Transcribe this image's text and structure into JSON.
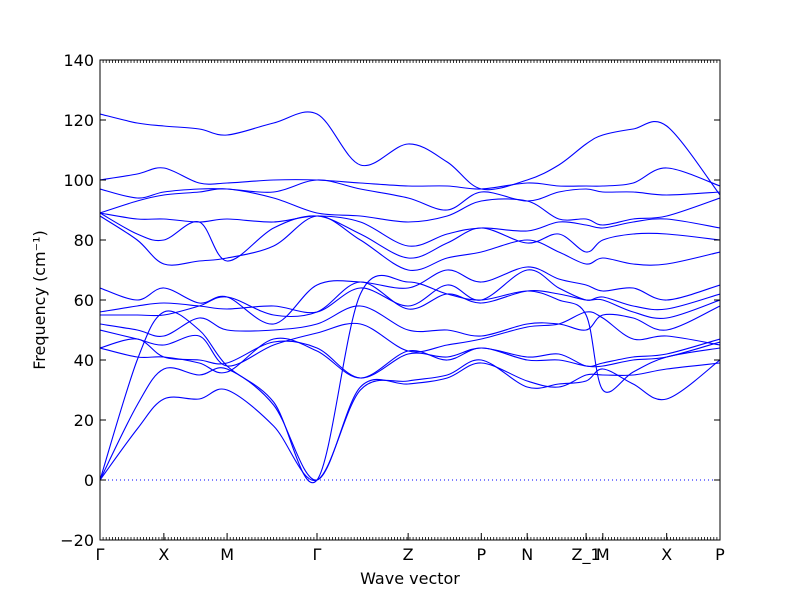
{
  "chart_data": {
    "type": "line",
    "title": "",
    "xlabel": "Wave vector",
    "ylabel": "Frequency (cm⁻¹)",
    "ylim": [
      -20,
      140
    ],
    "xlim": [
      0,
      1
    ],
    "yticks": [
      -20,
      0,
      20,
      40,
      60,
      80,
      100,
      120,
      140
    ],
    "high_symmetry_points": [
      {
        "label": "Γ",
        "x": 0.0
      },
      {
        "label": "X",
        "x": 0.103
      },
      {
        "label": "M",
        "x": 0.205
      },
      {
        "label": "Γ",
        "x": 0.35
      },
      {
        "label": "Z",
        "x": 0.497
      },
      {
        "label": "P",
        "x": 0.615
      },
      {
        "label": "N",
        "x": 0.689
      },
      {
        "label": "Z_1",
        "x": 0.784
      },
      {
        "label": "M",
        "x": 0.811
      },
      {
        "label": "X",
        "x": 0.914
      },
      {
        "label": "P",
        "x": 1.0
      }
    ],
    "zero_line": true,
    "line_color": "#0000ff",
    "series": [
      {
        "x": [
          0,
          0.06,
          0.103,
          0.16,
          0.205,
          0.28,
          0.35,
          0.42,
          0.497,
          0.56,
          0.615,
          0.689,
          0.74,
          0.784,
          0.811,
          0.86,
          0.914,
          1.0
        ],
        "y": [
          0,
          17,
          27,
          27,
          30,
          18,
          0,
          30,
          33,
          35,
          40,
          31,
          32,
          33,
          37,
          32,
          27,
          40
        ]
      },
      {
        "x": [
          0,
          0.06,
          0.103,
          0.16,
          0.205,
          0.28,
          0.35,
          0.42,
          0.497,
          0.56,
          0.615,
          0.689,
          0.74,
          0.784,
          0.811,
          0.86,
          0.914,
          1.0
        ],
        "y": [
          0,
          25,
          37,
          35,
          37,
          25,
          0,
          31,
          32,
          34,
          39,
          33,
          31,
          35,
          35,
          35,
          37,
          39
        ]
      },
      {
        "x": [
          0,
          0.06,
          0.103,
          0.16,
          0.205,
          0.28,
          0.35,
          0.42,
          0.497,
          0.56,
          0.615,
          0.689,
          0.74,
          0.784,
          0.811,
          0.86,
          0.914,
          1.0
        ],
        "y": [
          0,
          40,
          56,
          50,
          38,
          26,
          0,
          62,
          66,
          62,
          60,
          63,
          60,
          55,
          30,
          36,
          41,
          44
        ]
      },
      {
        "x": [
          0,
          0.06,
          0.103,
          0.16,
          0.205,
          0.28,
          0.35,
          0.42,
          0.497,
          0.56,
          0.615,
          0.689,
          0.74,
          0.784,
          0.811,
          0.86,
          0.914,
          1.0
        ],
        "y": [
          44,
          41,
          41,
          39,
          36,
          47,
          43,
          34,
          43,
          40,
          44,
          40,
          40,
          38,
          38,
          40,
          41,
          46
        ]
      },
      {
        "x": [
          0,
          0.06,
          0.103,
          0.16,
          0.205,
          0.28,
          0.35,
          0.42,
          0.497,
          0.56,
          0.615,
          0.689,
          0.74,
          0.784,
          0.811,
          0.86,
          0.914,
          1.0
        ],
        "y": [
          44,
          47,
          41,
          40,
          39,
          46,
          44,
          34,
          42,
          41,
          44,
          41,
          42,
          38,
          39,
          41,
          42,
          47
        ]
      },
      {
        "x": [
          0,
          0.06,
          0.103,
          0.16,
          0.205,
          0.28,
          0.35,
          0.42,
          0.497,
          0.56,
          0.615,
          0.689,
          0.74,
          0.784,
          0.811,
          0.86,
          0.914,
          1.0
        ],
        "y": [
          50,
          47,
          45,
          48,
          38,
          45,
          49,
          52,
          43,
          45,
          47,
          51,
          52,
          56,
          54,
          47,
          48,
          45
        ]
      },
      {
        "x": [
          0,
          0.06,
          0.103,
          0.16,
          0.205,
          0.28,
          0.35,
          0.42,
          0.497,
          0.56,
          0.615,
          0.689,
          0.74,
          0.784,
          0.811,
          0.86,
          0.914,
          1.0
        ],
        "y": [
          52,
          50,
          48,
          54,
          50,
          50,
          52,
          58,
          50,
          50,
          48,
          52,
          52,
          50,
          55,
          54,
          50,
          58
        ]
      },
      {
        "x": [
          0,
          0.06,
          0.103,
          0.16,
          0.205,
          0.28,
          0.35,
          0.42,
          0.497,
          0.56,
          0.615,
          0.689,
          0.74,
          0.784,
          0.811,
          0.86,
          0.914,
          1.0
        ],
        "y": [
          55,
          55,
          55,
          58,
          61,
          55,
          56,
          66,
          57,
          62,
          59,
          63,
          62,
          60,
          60,
          56,
          54,
          60
        ]
      },
      {
        "x": [
          0,
          0.06,
          0.103,
          0.16,
          0.205,
          0.28,
          0.35,
          0.42,
          0.497,
          0.56,
          0.615,
          0.689,
          0.74,
          0.784,
          0.811,
          0.86,
          0.914,
          1.0
        ],
        "y": [
          56,
          58,
          59,
          58,
          57,
          58,
          56,
          64,
          58,
          65,
          60,
          70,
          64,
          60,
          61,
          58,
          57,
          62
        ]
      },
      {
        "x": [
          0,
          0.06,
          0.103,
          0.16,
          0.205,
          0.28,
          0.35,
          0.42,
          0.497,
          0.56,
          0.615,
          0.689,
          0.74,
          0.784,
          0.811,
          0.86,
          0.914,
          1.0
        ],
        "y": [
          64,
          60,
          64,
          59,
          61,
          52,
          65,
          66,
          64,
          70,
          66,
          71,
          67,
          65,
          63,
          64,
          60,
          65
        ]
      },
      {
        "x": [
          0,
          0.06,
          0.103,
          0.16,
          0.205,
          0.28,
          0.35,
          0.42,
          0.497,
          0.56,
          0.615,
          0.689,
          0.74,
          0.784,
          0.811,
          0.86,
          0.914,
          1.0
        ],
        "y": [
          88,
          80,
          72,
          73,
          74,
          78,
          88,
          80,
          70,
          74,
          76,
          80,
          76,
          72,
          74,
          72,
          72,
          76
        ]
      },
      {
        "x": [
          0,
          0.06,
          0.103,
          0.16,
          0.205,
          0.28,
          0.35,
          0.42,
          0.497,
          0.56,
          0.615,
          0.689,
          0.74,
          0.784,
          0.811,
          0.86,
          0.914,
          1.0
        ],
        "y": [
          89,
          82,
          80,
          86,
          73,
          84,
          88,
          82,
          74,
          79,
          84,
          79,
          82,
          76,
          80,
          82,
          82,
          80
        ]
      },
      {
        "x": [
          0,
          0.06,
          0.103,
          0.16,
          0.205,
          0.28,
          0.35,
          0.42,
          0.497,
          0.56,
          0.615,
          0.689,
          0.74,
          0.784,
          0.811,
          0.86,
          0.914,
          1.0
        ],
        "y": [
          89,
          87,
          87,
          86,
          87,
          86,
          88,
          86,
          78,
          82,
          84,
          83,
          86,
          85,
          84,
          86,
          87,
          84
        ]
      },
      {
        "x": [
          0,
          0.06,
          0.103,
          0.16,
          0.205,
          0.28,
          0.35,
          0.42,
          0.497,
          0.56,
          0.615,
          0.689,
          0.74,
          0.784,
          0.811,
          0.86,
          0.914,
          1.0
        ],
        "y": [
          89,
          93,
          95,
          96,
          97,
          94,
          89,
          88,
          86,
          88,
          93,
          93,
          87,
          87,
          85,
          87,
          88,
          94
        ]
      },
      {
        "x": [
          0,
          0.06,
          0.103,
          0.16,
          0.205,
          0.28,
          0.35,
          0.42,
          0.497,
          0.56,
          0.615,
          0.689,
          0.74,
          0.784,
          0.811,
          0.86,
          0.914,
          1.0
        ],
        "y": [
          97,
          94,
          96,
          97,
          97,
          96,
          100,
          97,
          94,
          90,
          96,
          93,
          96,
          97,
          96,
          96,
          95,
          96
        ]
      },
      {
        "x": [
          0,
          0.06,
          0.103,
          0.16,
          0.205,
          0.28,
          0.35,
          0.42,
          0.497,
          0.56,
          0.615,
          0.689,
          0.74,
          0.784,
          0.811,
          0.86,
          0.914,
          1.0
        ],
        "y": [
          100,
          102,
          104,
          99,
          99,
          100,
          100,
          99,
          98,
          98,
          97,
          99,
          98,
          98,
          98,
          99,
          104,
          98
        ]
      },
      {
        "x": [
          0,
          0.06,
          0.103,
          0.16,
          0.205,
          0.28,
          0.35,
          0.42,
          0.497,
          0.56,
          0.615,
          0.689,
          0.74,
          0.784,
          0.811,
          0.86,
          0.914,
          1.0
        ],
        "y": [
          122,
          119,
          118,
          117,
          115,
          119,
          122,
          105,
          112,
          106,
          97,
          100,
          105,
          112,
          115,
          117,
          118,
          95
        ]
      }
    ]
  },
  "axes": {
    "y_tick_labels": [
      "−20",
      "0",
      "20",
      "40",
      "60",
      "80",
      "100",
      "120",
      "140"
    ]
  }
}
